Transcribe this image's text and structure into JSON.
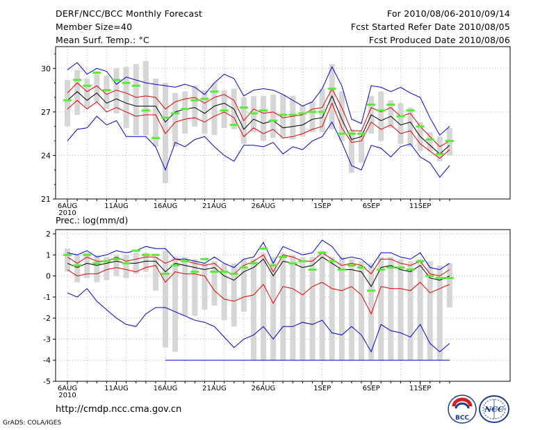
{
  "header": {
    "title": "DERF/NCC/BCC Monthly Forecast",
    "member_size": "Member Size=40",
    "variable": "Mean Surf. Temp.: °C",
    "period": "For 2010/08/06-2010/09/14",
    "fcst_started": "Fcst Started Refer Date 2010/08/05",
    "fcst_produced": "Fcst Produced Date 2010/08/06"
  },
  "footer": {
    "url": "http://cmdp.ncc.cma.gov.cn",
    "grads": "GrADS: COLA/IGES",
    "logo_bcc": "BCC",
    "logo_ncc": "NCC"
  },
  "colors": {
    "box": "#d6d6d6",
    "mean": "#000000",
    "std": "#e00000",
    "range": "#0000cc",
    "obs": "#55ee33",
    "grid": "#b0b0b0"
  },
  "chart_data": [
    {
      "type": "line",
      "panel": "temperature",
      "title": "Mean Surf. Temp.: °C",
      "x_tick_labels": [
        "6AUG",
        "11AUG",
        "16AUG",
        "21AUG",
        "26AUG",
        "1SEP",
        "6SEP",
        "11SEP"
      ],
      "x_tick_day_index": [
        0,
        5,
        10,
        15,
        20,
        26,
        31,
        36
      ],
      "x_year_label": "2010",
      "ylim": [
        21,
        31.5
      ],
      "yticks": [
        21,
        24,
        27,
        30
      ],
      "days": 40,
      "series": [
        {
          "name": "max",
          "values": [
            29.9,
            30.4,
            29.6,
            30.0,
            29.8,
            28.9,
            29.4,
            29.2,
            29.0,
            28.9,
            28.8,
            28.7,
            28.9,
            28.7,
            28.2,
            29.0,
            29.6,
            29.3,
            28.1,
            28.5,
            28.6,
            28.5,
            28.2,
            27.8,
            27.4,
            27.7,
            28.6,
            30.1,
            28.8,
            26.5,
            26.2,
            28.8,
            28.7,
            28.4,
            28.7,
            28.3,
            28.0,
            26.6,
            25.4,
            26.0
          ]
        },
        {
          "name": "mean_plus_std",
          "values": [
            28.3,
            29.0,
            28.4,
            28.8,
            28.2,
            28.5,
            28.3,
            28.0,
            28.1,
            28.0,
            27.2,
            27.7,
            27.9,
            28.0,
            27.6,
            28.0,
            28.2,
            27.8,
            26.4,
            27.2,
            26.9,
            27.0,
            26.6,
            26.7,
            26.8,
            27.2,
            27.3,
            28.6,
            27.3,
            25.7,
            25.7,
            27.3,
            27.0,
            27.3,
            26.7,
            26.9,
            26.0,
            25.3,
            24.6,
            25.0
          ]
        },
        {
          "name": "mean",
          "values": [
            27.8,
            28.4,
            27.8,
            28.3,
            27.6,
            27.9,
            27.6,
            27.4,
            27.4,
            27.4,
            26.3,
            27.0,
            27.2,
            27.3,
            26.9,
            27.4,
            27.6,
            27.2,
            25.8,
            26.5,
            26.2,
            26.4,
            25.9,
            26.0,
            26.1,
            26.5,
            26.6,
            28.1,
            26.5,
            25.1,
            25.3,
            26.8,
            26.4,
            26.7,
            26.1,
            26.3,
            25.3,
            24.7,
            24.1,
            24.7
          ]
        },
        {
          "name": "mean_minus_std",
          "values": [
            27.2,
            27.8,
            27.2,
            27.7,
            27.0,
            27.3,
            27.0,
            26.7,
            26.8,
            26.8,
            25.5,
            26.3,
            26.5,
            26.6,
            26.3,
            26.7,
            27.0,
            26.6,
            25.3,
            25.9,
            25.5,
            25.8,
            25.2,
            25.3,
            25.5,
            25.8,
            26.0,
            27.6,
            25.9,
            24.9,
            25.0,
            26.3,
            25.8,
            26.1,
            25.5,
            25.7,
            24.8,
            24.3,
            23.8,
            24.4
          ]
        },
        {
          "name": "min",
          "values": [
            25.0,
            25.8,
            25.9,
            26.7,
            26.1,
            26.4,
            25.3,
            25.3,
            25.3,
            24.6,
            23.0,
            24.9,
            24.6,
            25.1,
            25.3,
            24.6,
            24.0,
            23.6,
            24.7,
            24.7,
            24.6,
            24.9,
            24.1,
            24.6,
            24.4,
            25.0,
            25.3,
            26.3,
            24.9,
            23.3,
            23.0,
            24.7,
            24.5,
            23.9,
            24.6,
            24.8,
            23.9,
            23.5,
            22.5,
            23.3
          ]
        },
        {
          "name": "box_top",
          "values": [
            29.2,
            29.9,
            29.3,
            29.6,
            29.5,
            30.0,
            30.1,
            30.3,
            30.5,
            29.3,
            29.0,
            28.3,
            28.4,
            28.8,
            28.5,
            29.0,
            28.5,
            28.6,
            28.0,
            28.1,
            28.1,
            28.2,
            28.2,
            28.1,
            27.5,
            27.7,
            28.6,
            30.3,
            28.4,
            25.8,
            25.7,
            28.1,
            28.4,
            27.8,
            27.6,
            27.3,
            26.3,
            25.6,
            25.3,
            25.9
          ]
        },
        {
          "name": "box_bottom",
          "values": [
            26.0,
            26.8,
            27.3,
            27.7,
            27.2,
            26.9,
            25.9,
            25.4,
            25.4,
            24.6,
            22.1,
            24.6,
            25.5,
            26.0,
            25.5,
            25.4,
            25.9,
            25.8,
            24.8,
            25.6,
            25.0,
            25.2,
            25.2,
            25.1,
            25.3,
            25.6,
            25.6,
            25.8,
            25.0,
            22.8,
            23.5,
            25.5,
            25.0,
            25.9,
            24.8,
            24.6,
            24.3,
            24.3,
            23.6,
            24.0
          ]
        },
        {
          "name": "observed",
          "values": [
            27.8,
            29.2,
            28.8,
            29.7,
            28.5,
            29.2,
            29.0,
            28.8,
            27.1,
            25.2,
            26.6,
            26.9,
            27.2,
            27.8,
            27.9,
            28.4,
            27.1,
            26.1,
            27.3,
            26.9,
            27.1,
            26.4,
            26.8,
            26.8,
            26.9,
            27.0,
            27.0,
            28.6,
            25.5,
            25.5,
            25.5,
            27.5,
            27.1,
            27.5,
            26.7,
            27.1,
            26.0,
            25.1,
            24.1,
            25.0
          ]
        }
      ]
    },
    {
      "type": "line",
      "panel": "precipitation",
      "title": "Prec.: log(mm/d)",
      "x_tick_labels": [
        "6AUG",
        "11AUG",
        "16AUG",
        "21AUG",
        "26AUG",
        "1SEP",
        "6SEP",
        "11SEP"
      ],
      "x_tick_day_index": [
        0,
        5,
        10,
        15,
        20,
        26,
        31,
        36
      ],
      "x_year_label": "2010",
      "ylim": [
        -5,
        2.2
      ],
      "yticks": [
        -5,
        -4,
        -3,
        -2,
        -1,
        0,
        1,
        2
      ],
      "days": 40,
      "series": [
        {
          "name": "max",
          "values": [
            1.1,
            1.0,
            1.2,
            0.9,
            1.0,
            1.2,
            1.1,
            1.2,
            1.4,
            1.3,
            1.3,
            0.8,
            0.8,
            0.7,
            0.6,
            0.9,
            0.6,
            0.4,
            0.8,
            0.9,
            1.6,
            0.6,
            1.4,
            1.2,
            1.0,
            1.1,
            1.7,
            1.4,
            0.8,
            0.9,
            0.8,
            0.4,
            1.1,
            1.1,
            0.9,
            0.8,
            1.1,
            0.4,
            0.3,
            0.6
          ]
        },
        {
          "name": "mean_plus_std",
          "values": [
            0.9,
            0.6,
            0.9,
            0.7,
            0.7,
            0.9,
            0.7,
            0.8,
            0.9,
            0.9,
            0.6,
            0.8,
            0.7,
            0.6,
            0.5,
            0.6,
            0.2,
            0.1,
            0.5,
            0.7,
            1.0,
            0.2,
            1.0,
            0.9,
            0.7,
            0.7,
            1.1,
            0.8,
            0.5,
            0.6,
            0.5,
            0.1,
            0.8,
            0.8,
            0.6,
            0.5,
            0.7,
            0.1,
            0.0,
            0.3
          ]
        },
        {
          "name": "mean",
          "values": [
            0.6,
            0.4,
            0.6,
            0.5,
            0.6,
            0.7,
            0.6,
            0.6,
            0.7,
            0.7,
            0.2,
            0.6,
            0.5,
            0.4,
            0.3,
            0.4,
            0.0,
            -0.2,
            0.2,
            0.4,
            0.8,
            0.0,
            0.7,
            0.6,
            0.4,
            0.5,
            0.9,
            0.6,
            0.3,
            0.3,
            0.2,
            -0.5,
            0.4,
            0.5,
            0.3,
            0.2,
            0.5,
            -0.1,
            -0.2,
            0.0
          ]
        },
        {
          "name": "mean_minus_std",
          "values": [
            0.3,
            0.0,
            0.1,
            0.1,
            0.3,
            0.4,
            0.3,
            0.2,
            0.4,
            0.5,
            -0.3,
            0.2,
            0.1,
            0.1,
            0.0,
            -0.7,
            -1.1,
            -1.2,
            -1.0,
            -0.9,
            -0.4,
            -1.3,
            -0.5,
            -0.6,
            -0.9,
            -0.5,
            -0.3,
            -0.6,
            -0.7,
            -0.5,
            -0.9,
            -1.8,
            -0.5,
            -0.6,
            -0.6,
            -0.7,
            -0.3,
            -0.8,
            -0.6,
            -0.4
          ]
        },
        {
          "name": "min",
          "values": [
            -0.8,
            -1.0,
            -0.6,
            -1.2,
            -1.6,
            -2.0,
            -2.3,
            -2.4,
            -1.8,
            -1.5,
            -1.5,
            -1.7,
            -1.9,
            -2.1,
            -2.2,
            -2.4,
            -2.9,
            -3.4,
            -3.0,
            -2.8,
            -2.4,
            -3.0,
            -2.4,
            -2.4,
            -2.2,
            -2.3,
            -2.1,
            -2.7,
            -2.8,
            -2.4,
            -2.8,
            -3.6,
            -2.3,
            -2.6,
            -2.7,
            -2.9,
            -2.3,
            -3.2,
            -3.6,
            -3.2
          ]
        },
        {
          "name": "range_floor",
          "values": [
            null,
            null,
            null,
            null,
            null,
            null,
            null,
            null,
            null,
            null,
            -4.0,
            -4.0,
            -4.0,
            -4.0,
            -4.0,
            -4.0,
            -4.0,
            -4.0,
            -4.0,
            -4.0,
            -4.0,
            -4.0,
            -4.0,
            -4.0,
            -4.0,
            -4.0,
            -4.0,
            -4.0,
            -4.0,
            -4.0,
            -4.0,
            -4.0,
            -4.0,
            -4.0,
            -4.0,
            -4.0,
            -4.0,
            -4.0,
            -4.0,
            -4.0
          ]
        },
        {
          "name": "box_top",
          "values": [
            1.3,
            1.0,
            1.1,
            1.0,
            0.9,
            1.0,
            1.0,
            1.1,
            1.1,
            0.9,
            1.2,
            0.9,
            0.9,
            0.8,
            0.6,
            0.7,
            0.6,
            0.6,
            0.8,
            0.8,
            1.1,
            0.9,
            1.1,
            1.0,
            0.9,
            0.9,
            1.2,
            0.9,
            0.9,
            0.8,
            0.7,
            0.6,
            0.9,
            0.9,
            0.8,
            0.7,
            0.8,
            0.7,
            0.5,
            0.6
          ]
        },
        {
          "name": "box_bottom",
          "values": [
            0.2,
            -0.3,
            -0.1,
            -0.3,
            -0.2,
            0.0,
            -0.1,
            0.1,
            0.2,
            -0.7,
            -3.4,
            -3.6,
            -1.9,
            -1.9,
            -1.6,
            -1.4,
            -2.1,
            -2.4,
            -1.7,
            -4.0,
            -4.0,
            -4.0,
            -4.0,
            -4.0,
            -4.0,
            -4.0,
            -4.0,
            -4.0,
            -4.0,
            -4.0,
            -4.0,
            -4.0,
            -4.0,
            -4.0,
            -4.0,
            -4.0,
            -4.0,
            -4.0,
            -4.0,
            -1.5
          ]
        },
        {
          "name": "observed",
          "values": [
            1.0,
            0.5,
            1.0,
            0.6,
            0.7,
            0.8,
            0.6,
            1.2,
            1.0,
            1.0,
            0.1,
            0.5,
            0.7,
            0.2,
            0.8,
            0.2,
            0.2,
            0.1,
            0.4,
            0.6,
            1.3,
            0.5,
            0.9,
            0.6,
            0.7,
            0.3,
            1.1,
            0.7,
            0.3,
            0.5,
            0.4,
            -0.7,
            0.3,
            0.4,
            0.4,
            0.3,
            0.7,
            0.0,
            -0.1,
            -0.1
          ]
        }
      ]
    }
  ]
}
